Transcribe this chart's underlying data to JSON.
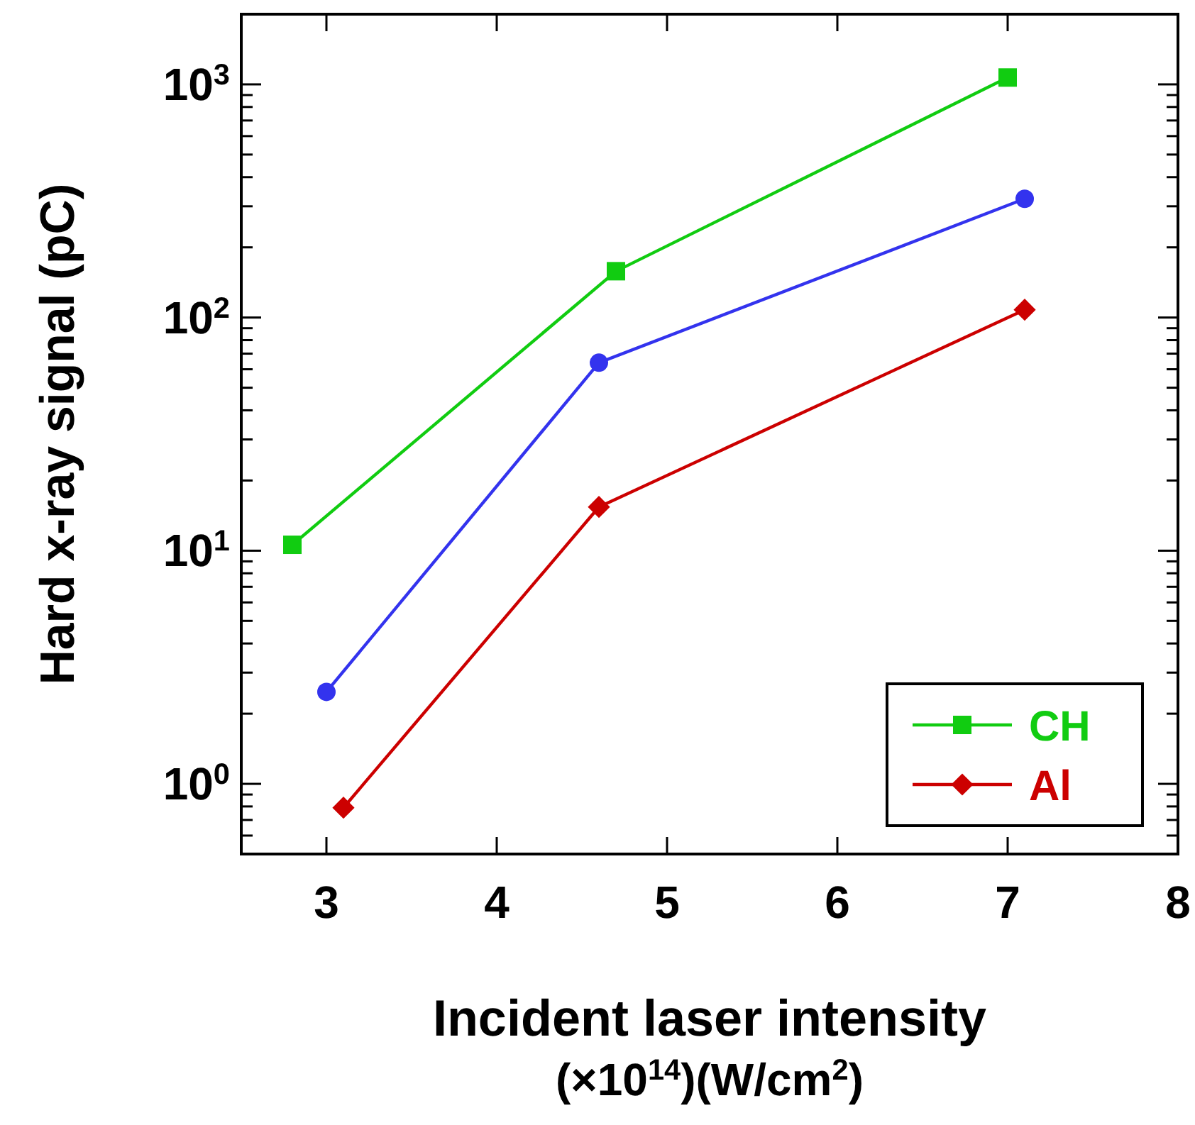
{
  "chart_data": {
    "type": "line",
    "xlabel": "Incident laser intensity\n(×10$^{14}$)(W/cm$^{2}$)",
    "ylabel": "Hard x-ray signal (pC)",
    "log": "y",
    "xlim": [
      2.5,
      8
    ],
    "xticks": [
      3,
      4,
      5,
      6,
      7,
      8
    ],
    "ylim": [
      0.5,
      2000
    ],
    "yticks": [
      {
        "value": 1,
        "label": "10$^{0}$"
      },
      {
        "value": 10,
        "label": "10$^{1}$"
      },
      {
        "value": 100,
        "label": "10$^{2}$"
      },
      {
        "value": 1000,
        "label": "10$^{3}$"
      },
      {
        "value": 0.6,
        "label": null
      },
      {
        "value": 0.7,
        "label": null
      },
      {
        "value": 0.8,
        "label": null
      },
      {
        "value": 0.9,
        "label": null
      },
      {
        "value": 2,
        "label": null
      },
      {
        "value": 3,
        "label": null
      },
      {
        "value": 4,
        "label": null
      },
      {
        "value": 5,
        "label": null
      },
      {
        "value": 6,
        "label": null
      },
      {
        "value": 7,
        "label": null
      },
      {
        "value": 8,
        "label": null
      },
      {
        "value": 9,
        "label": null
      },
      {
        "value": 20,
        "label": null
      },
      {
        "value": 30,
        "label": null
      },
      {
        "value": 40,
        "label": null
      },
      {
        "value": 50,
        "label": null
      },
      {
        "value": 60,
        "label": null
      },
      {
        "value": 70,
        "label": null
      },
      {
        "value": 80,
        "label": null
      },
      {
        "value": 90,
        "label": null
      },
      {
        "value": 200,
        "label": null
      },
      {
        "value": 300,
        "label": null
      },
      {
        "value": 400,
        "label": null
      },
      {
        "value": 500,
        "label": null
      },
      {
        "value": 600,
        "label": null
      },
      {
        "value": 700,
        "label": null
      },
      {
        "value": 800,
        "label": null
      },
      {
        "value": 900,
        "label": null
      }
    ],
    "grid": false,
    "legend": "bottom right",
    "line_style": "solid",
    "series": [
      {
        "name": "CH",
        "color": "#11cc11",
        "marker": "square",
        "x": [
          2.8,
          4.7,
          7.0
        ],
        "values": [
          10.6,
          158,
          1070
        ]
      },
      {
        "color": "#3333ee",
        "marker": "circle",
        "x": [
          3.0,
          4.6,
          7.1
        ],
        "values": [
          2.48,
          64,
          323
        ]
      },
      {
        "name": "Al",
        "color": "#cc0000",
        "marker": "diamond",
        "x": [
          3.1,
          4.6,
          7.1
        ],
        "values": [
          0.79,
          15.4,
          108
        ]
      }
    ]
  }
}
